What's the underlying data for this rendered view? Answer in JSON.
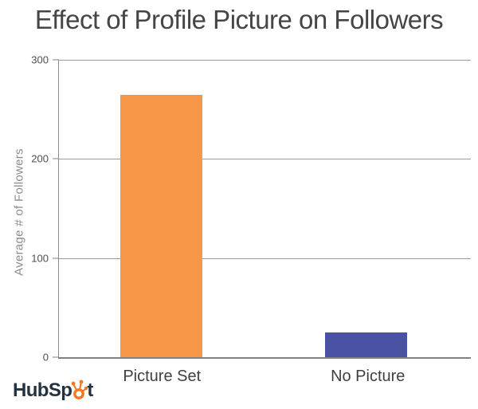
{
  "chart_data": {
    "type": "bar",
    "title": "Effect of Profile Picture on Followers",
    "categories": [
      "Picture Set",
      "No Picture"
    ],
    "values": [
      265,
      25
    ],
    "colors": [
      "#F79646",
      "#4A52A3"
    ],
    "xlabel": "",
    "ylabel": "Average # of Followers",
    "ylim": [
      0,
      300
    ],
    "y_ticks": [
      "300",
      "200",
      "100",
      "0"
    ],
    "grid": "horizontal gridlines at 100, 200, 300",
    "legend": "none"
  },
  "branding": {
    "logo_text_left": "HubSp",
    "logo_text_right": "t",
    "logo_icon": "hubspot-sprocket-icon",
    "logo_text_color": "#24313F",
    "sprocket_color": "#F8761F"
  }
}
